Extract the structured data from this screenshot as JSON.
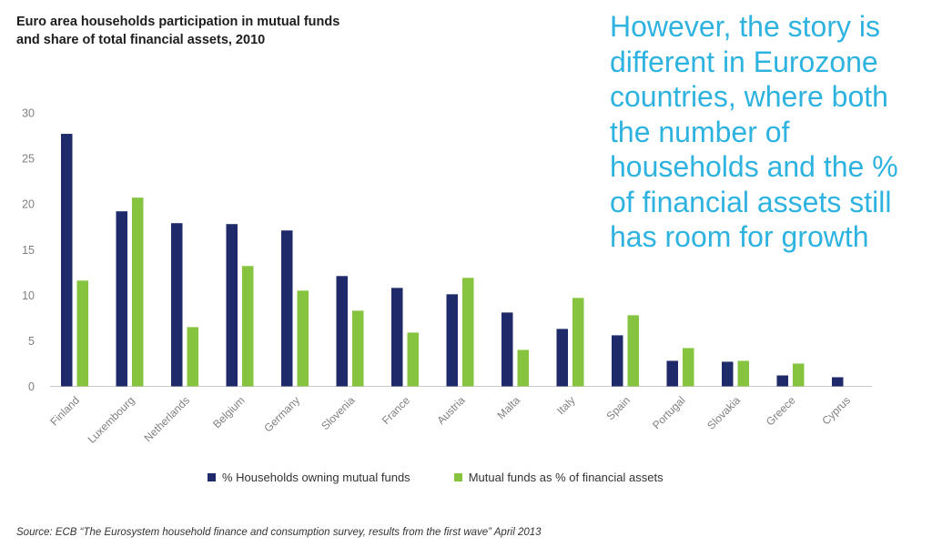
{
  "colors": {
    "households": "#1f2a6b",
    "assets": "#86c440",
    "callout": "#2eb3e0",
    "axis_text": "#7f7f7f"
  },
  "callout": "However, the story is different in Eurozone countries, where both the number of households and the % of financial assets still has room for growth",
  "source": "Source: ECB “The Eurosystem household finance and consumption survey, results from the first wave” April 2013",
  "chart_data": {
    "type": "bar",
    "title": "Euro area households participation in mutual funds and share of total financial assets, 2010",
    "categories": [
      "Finland",
      "Luxembourg",
      "Netherlands",
      "Belgium",
      "Germany",
      "Slovenia",
      "France",
      "Austria",
      "Malta",
      "Italy",
      "Spain",
      "Portugal",
      "Slovakia",
      "Greece",
      "Cyprus"
    ],
    "series": [
      {
        "name": "% Households owning mutual funds",
        "values": [
          27.7,
          19.2,
          17.9,
          17.8,
          17.1,
          12.1,
          10.8,
          10.1,
          8.1,
          6.3,
          5.6,
          2.8,
          2.7,
          1.2,
          1.0
        ]
      },
      {
        "name": "Mutual funds as % of financial assets",
        "values": [
          11.6,
          20.7,
          6.5,
          13.2,
          10.5,
          8.3,
          5.9,
          11.9,
          4.0,
          9.7,
          7.8,
          4.2,
          2.8,
          2.5,
          null
        ]
      }
    ],
    "ylim": [
      0,
      30
    ],
    "yticks": [
      0,
      5,
      10,
      15,
      20,
      25,
      30
    ],
    "grid": false,
    "legend": "bottom"
  }
}
